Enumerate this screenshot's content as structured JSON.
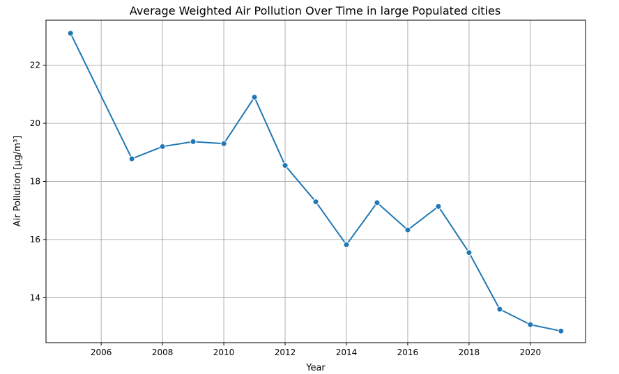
{
  "chart_data": {
    "type": "line",
    "title": "Average Weighted Air Pollution Over Time in large Populated cities",
    "xlabel": "Year",
    "ylabel": "Air Pollution [µg/m³]",
    "x": [
      2005,
      2007,
      2008,
      2009,
      2010,
      2011,
      2012,
      2013,
      2014,
      2015,
      2016,
      2017,
      2018,
      2019,
      2020,
      2021
    ],
    "series": [
      {
        "values": [
          23.1,
          18.78,
          19.2,
          19.37,
          19.3,
          20.9,
          18.55,
          17.3,
          15.82,
          17.27,
          16.33,
          17.14,
          15.55,
          13.6,
          13.07,
          12.85
        ]
      }
    ],
    "xlim": [
      2004.2,
      2021.8
    ],
    "ylim": [
      12.45,
      23.55
    ],
    "xticks": [
      "2006",
      "2008",
      "2010",
      "2012",
      "2014",
      "2016",
      "2018",
      "2020"
    ],
    "yticks": [
      "14",
      "16",
      "18",
      "20",
      "22"
    ],
    "grid": true,
    "line_color": "#1f77b4"
  }
}
